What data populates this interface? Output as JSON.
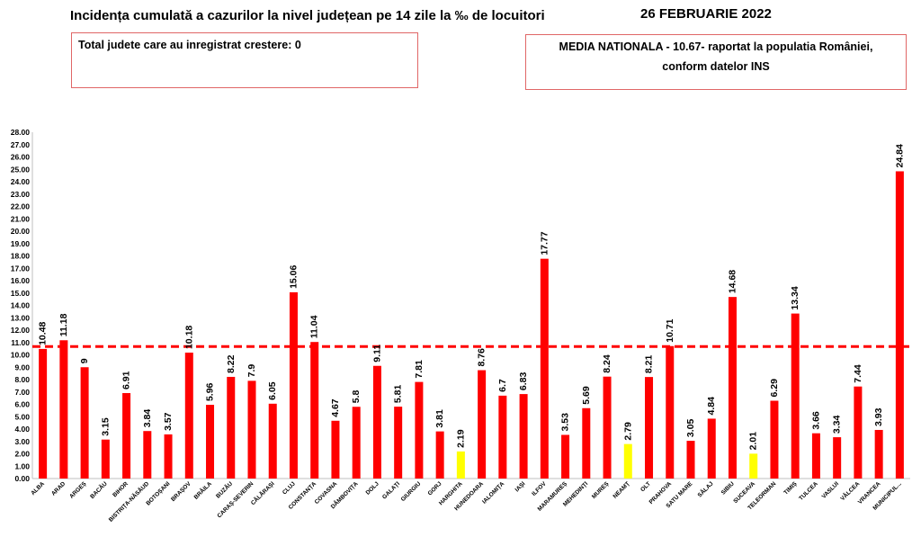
{
  "header": {
    "title": "Incidența cumulată a cazurilor la nivel județean pe 14 zile la ‰ de locuitori",
    "date": "26 FEBRUARIE 2022"
  },
  "left_box": {
    "text": "Total judete care au inregistrat crestere: 0"
  },
  "right_box": {
    "line1": "MEDIA NATIONALA - 10.67-  raportat la populatia României,",
    "line2": "conform datelor INS"
  },
  "chart_data": {
    "type": "bar",
    "categories": [
      "ALBA",
      "ARAD",
      "ARGEȘ",
      "BACĂU",
      "BIHOR",
      "BISTRIȚA-NĂSĂUD",
      "BOTOȘANI",
      "BRAȘOV",
      "BRĂILA",
      "BUZĂU",
      "CARAȘ-SEVERIN",
      "CĂLĂRAȘI",
      "CLUJ",
      "CONSTANȚA",
      "COVASNA",
      "DÂMBOVIȚA",
      "DOLJ",
      "GALAȚI",
      "GIURGIU",
      "GORJ",
      "HARGHITA",
      "HUNEDOARA",
      "IALOMIȚA",
      "IAȘI",
      "ILFOV",
      "MARAMUREȘ",
      "MEHEDINȚI",
      "MUREȘ",
      "NEAMȚ",
      "OLT",
      "PRAHOVA",
      "SATU MARE",
      "SĂLAJ",
      "SIBIU",
      "SUCEAVA",
      "TELEORMAN",
      "TIMIȘ",
      "TULCEA",
      "VASLUI",
      "VÂLCEA",
      "VRANCEA",
      "MUNICIPUL..."
    ],
    "values": [
      10.48,
      11.18,
      9,
      3.15,
      6.91,
      3.84,
      3.57,
      10.18,
      5.96,
      8.22,
      7.9,
      6.05,
      15.06,
      11.04,
      4.67,
      5.8,
      9.11,
      5.81,
      7.81,
      3.81,
      2.19,
      8.76,
      6.7,
      6.83,
      17.77,
      3.53,
      5.69,
      8.24,
      2.79,
      8.21,
      10.71,
      3.05,
      4.84,
      14.68,
      2.01,
      6.29,
      13.34,
      3.66,
      3.34,
      7.44,
      3.93,
      24.84
    ],
    "value_labels": [
      "10.48",
      "11.18",
      "9",
      "3.15",
      "6.91",
      "3.84",
      "3.57",
      "10.18",
      "5.96",
      "8.22",
      "7.9",
      "6.05",
      "15.06",
      "11.04",
      "4.67",
      "5.8",
      "9.11",
      "5.81",
      "7.81",
      "3.81",
      "2.19",
      "8.76",
      "6.7",
      "6.83",
      "17.77",
      "3.53",
      "5.69",
      "8.24",
      "2.79",
      "8.21",
      "10.71",
      "3.05",
      "4.84",
      "14.68",
      "2.01",
      "6.29",
      "13.34",
      "3.66",
      "3.34",
      "7.44",
      "3.93",
      "24.84"
    ],
    "highlight_categories": [
      "HARGHITA",
      "NEAMȚ",
      "SUCEAVA"
    ],
    "ylim": [
      0,
      28
    ],
    "ytick_step": 1,
    "reference_line": 10.67,
    "colors": {
      "bar": "#ff0000",
      "highlight": "#ffff00",
      "reference": "#ff0000",
      "box_border": "#e06666"
    },
    "grid": false,
    "legend": "none"
  }
}
